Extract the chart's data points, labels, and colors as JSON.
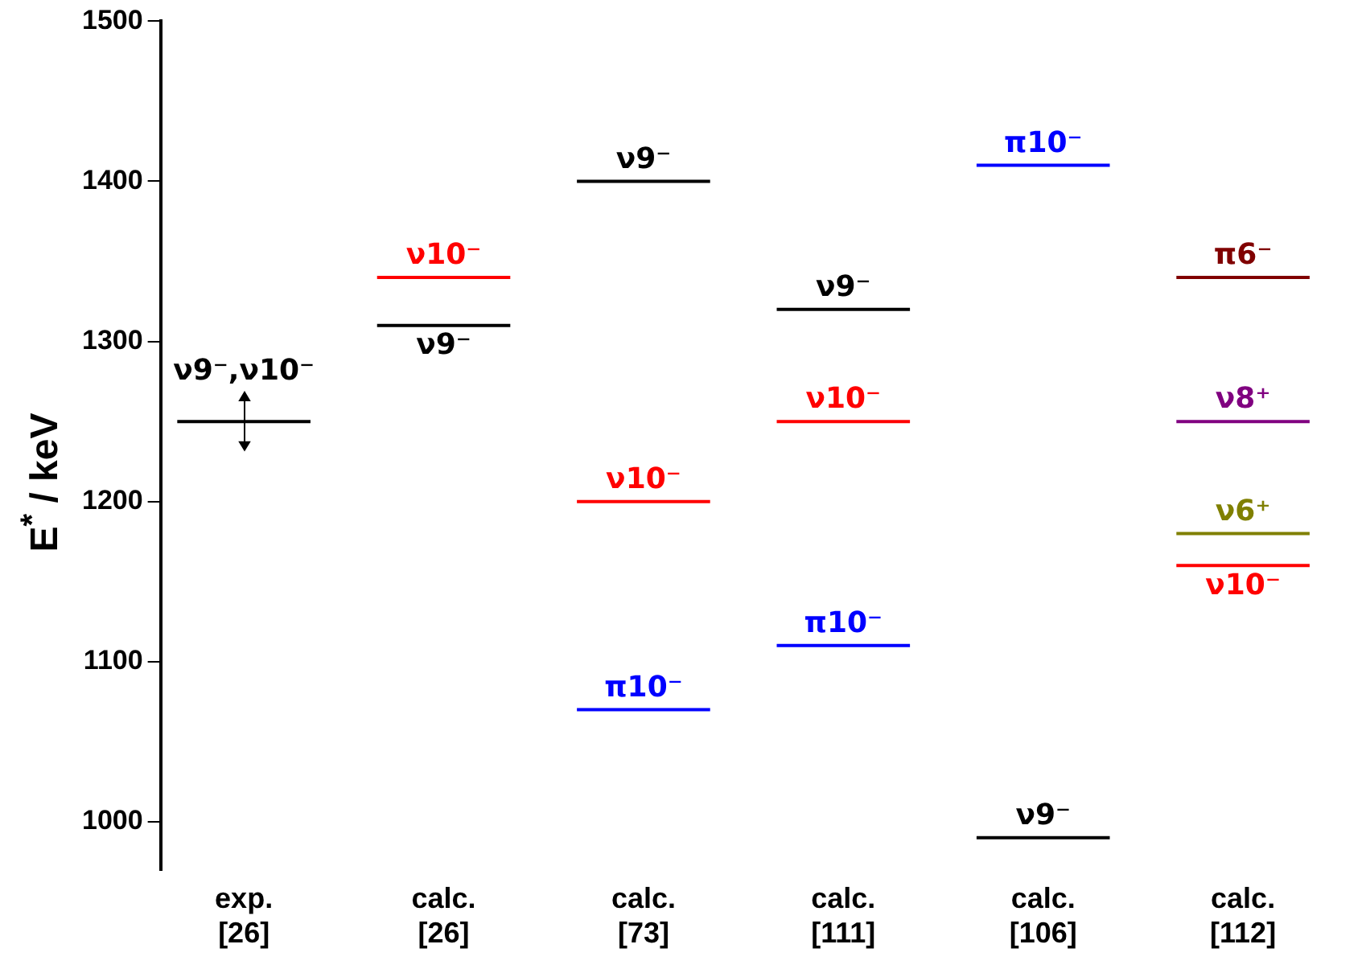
{
  "chart_data": {
    "type": "line",
    "ylabel": "E$^{*}$ / keV",
    "categories": [
      null,
      null,
      "exp. [26]",
      null,
      null,
      null,
      null,
      null,
      "calc. [26]",
      null,
      null,
      null,
      null,
      null,
      "calc. [73]",
      null,
      null,
      null,
      null,
      null,
      "calc. [111]",
      null,
      null,
      null,
      null,
      null,
      "calc. [106]",
      null,
      null,
      null,
      null,
      null,
      "calc. [112]",
      null,
      null,
      null
    ],
    "series": [
      {
        "color": "#000000",
        "values": [
          1250,
          1250,
          1250,
          1250,
          1250,
          null,
          null,
          null,
          null,
          null,
          null,
          null,
          null,
          null,
          null,
          null,
          null,
          null,
          null,
          null,
          null,
          null,
          null,
          null,
          null,
          null,
          null,
          null,
          null,
          null,
          null,
          null,
          null,
          null,
          null,
          null
        ],
        "errors": [
          null,
          null,
          18,
          null,
          null,
          null,
          null,
          null,
          null,
          null,
          null,
          null,
          null,
          null,
          null,
          null,
          null,
          null,
          null,
          null,
          null,
          null,
          null,
          null,
          null,
          null,
          null,
          null,
          null,
          null,
          null,
          null,
          null,
          null,
          null,
          null
        ]
      },
      {
        "color": "#ff0000",
        "values": [
          null,
          null,
          null,
          null,
          null,
          null,
          1340,
          1340,
          1340,
          1340,
          1340,
          null,
          null,
          null,
          null,
          null,
          null,
          null,
          null,
          null,
          null,
          null,
          null,
          null,
          null,
          null,
          null,
          null,
          null,
          null,
          null,
          null,
          null,
          null,
          null,
          null
        ]
      },
      {
        "color": "#000000",
        "values": [
          null,
          null,
          null,
          null,
          null,
          null,
          1310,
          1310,
          1310,
          1310,
          1310,
          null,
          null,
          null,
          null,
          null,
          null,
          null,
          null,
          null,
          null,
          null,
          null,
          null,
          null,
          null,
          null,
          null,
          null,
          null,
          null,
          null,
          null,
          null,
          null,
          null
        ]
      },
      {
        "color": "#000000",
        "values": [
          null,
          null,
          null,
          null,
          null,
          null,
          null,
          null,
          null,
          null,
          null,
          null,
          1400,
          1400,
          1400,
          1400,
          1400,
          null,
          null,
          null,
          null,
          null,
          null,
          null,
          null,
          null,
          null,
          null,
          null,
          null,
          null,
          null,
          null,
          null,
          null,
          null
        ]
      },
      {
        "color": "#ff0000",
        "values": [
          null,
          null,
          null,
          null,
          null,
          null,
          null,
          null,
          null,
          null,
          null,
          null,
          1200,
          1200,
          1200,
          1200,
          1200,
          null,
          null,
          null,
          null,
          null,
          null,
          null,
          null,
          null,
          null,
          null,
          null,
          null,
          null,
          null,
          null,
          null,
          null,
          null
        ]
      },
      {
        "color": "#0000ff",
        "values": [
          null,
          null,
          null,
          null,
          null,
          null,
          null,
          null,
          null,
          null,
          null,
          null,
          1070,
          1070,
          1070,
          1070,
          1070,
          null,
          null,
          null,
          null,
          null,
          null,
          null,
          null,
          null,
          null,
          null,
          null,
          null,
          null,
          null,
          null,
          null,
          null,
          null
        ]
      },
      {
        "color": "#000000",
        "values": [
          null,
          null,
          null,
          null,
          null,
          null,
          null,
          null,
          null,
          null,
          null,
          null,
          null,
          null,
          null,
          null,
          null,
          null,
          1320,
          1320,
          1320,
          1320,
          1320,
          null,
          null,
          null,
          null,
          null,
          null,
          null,
          null,
          null,
          null,
          null,
          null,
          null
        ]
      },
      {
        "color": "#ff0000",
        "values": [
          null,
          null,
          null,
          null,
          null,
          null,
          null,
          null,
          null,
          null,
          null,
          null,
          null,
          null,
          null,
          null,
          null,
          null,
          1250,
          1250,
          1250,
          1250,
          1250,
          null,
          null,
          null,
          null,
          null,
          null,
          null,
          null,
          null,
          null,
          null,
          null,
          null
        ]
      },
      {
        "color": "#0000ff",
        "values": [
          null,
          null,
          null,
          null,
          null,
          null,
          null,
          null,
          null,
          null,
          null,
          null,
          null,
          null,
          null,
          null,
          null,
          null,
          1110,
          1110,
          1110,
          1110,
          1110,
          null,
          null,
          null,
          null,
          null,
          null,
          null,
          null,
          null,
          null,
          null,
          null,
          null
        ]
      },
      {
        "color": "#0000ff",
        "values": [
          null,
          null,
          null,
          null,
          null,
          null,
          null,
          null,
          null,
          null,
          null,
          null,
          null,
          null,
          null,
          null,
          null,
          null,
          null,
          null,
          null,
          null,
          null,
          null,
          1410,
          1410,
          1410,
          1410,
          1410,
          null,
          null,
          null,
          null,
          null,
          null,
          null
        ]
      },
      {
        "color": "#000000",
        "values": [
          null,
          null,
          null,
          null,
          null,
          null,
          null,
          null,
          null,
          null,
          null,
          null,
          null,
          null,
          null,
          null,
          null,
          null,
          null,
          null,
          null,
          null,
          null,
          null,
          990,
          990,
          990,
          990,
          990,
          null,
          null,
          null,
          null,
          null,
          null,
          null
        ]
      },
      {
        "color": "#800000",
        "values": [
          null,
          null,
          null,
          null,
          null,
          null,
          null,
          null,
          null,
          null,
          null,
          null,
          null,
          null,
          null,
          null,
          null,
          null,
          null,
          null,
          null,
          null,
          null,
          null,
          null,
          null,
          null,
          null,
          null,
          null,
          1340,
          1340,
          1340,
          1340,
          1340,
          null
        ]
      },
      {
        "color": "#800080",
        "values": [
          null,
          null,
          null,
          null,
          null,
          null,
          null,
          null,
          null,
          null,
          null,
          null,
          null,
          null,
          null,
          null,
          null,
          null,
          null,
          null,
          null,
          null,
          null,
          null,
          null,
          null,
          null,
          null,
          null,
          null,
          1250,
          1250,
          1250,
          1250,
          1250,
          null
        ]
      },
      {
        "color": "#808000",
        "values": [
          null,
          null,
          null,
          null,
          null,
          null,
          null,
          null,
          null,
          null,
          null,
          null,
          null,
          null,
          null,
          null,
          null,
          null,
          null,
          null,
          null,
          null,
          null,
          null,
          null,
          null,
          null,
          null,
          null,
          null,
          1180,
          1180,
          1180,
          1180,
          1180,
          null
        ]
      },
      {
        "color": "#ff0000",
        "values": [
          null,
          null,
          null,
          null,
          null,
          null,
          null,
          null,
          null,
          null,
          null,
          null,
          null,
          null,
          null,
          null,
          null,
          null,
          null,
          null,
          null,
          null,
          null,
          null,
          null,
          null,
          null,
          null,
          null,
          null,
          1160,
          1160,
          1160,
          1160,
          1160,
          null
        ]
      }
    ],
    "annotations": [
      {
        "text": "ν9⁻,ν10⁻",
        "x": "exp. [26]",
        "y": 1250
      },
      {
        "text": "ν10⁻",
        "x": "calc. [26]",
        "y": 1340
      },
      {
        "text": "ν9⁻",
        "x": "calc. [26]",
        "y": 1310
      },
      {
        "text": "ν9⁻",
        "x": "calc. [73]",
        "y": 1400
      },
      {
        "text": "ν10⁻",
        "x": "calc. [73]",
        "y": 1200
      },
      {
        "text": "π10⁻",
        "x": "calc. [73]",
        "y": 1070
      },
      {
        "text": "ν9⁻",
        "x": "calc. [111]",
        "y": 1320
      },
      {
        "text": "ν10⁻",
        "x": "calc. [111]",
        "y": 1250
      },
      {
        "text": "π10⁻",
        "x": "calc. [111]",
        "y": 1110
      },
      {
        "text": "π10⁻",
        "x": "calc. [106]",
        "y": 1410
      },
      {
        "text": "ν9⁻",
        "x": "calc. [106]",
        "y": 990
      },
      {
        "text": "π6⁻",
        "x": "calc. [112]",
        "y": 1340
      },
      {
        "text": "ν8⁺",
        "x": "calc. [112]",
        "y": 1250
      },
      {
        "text": "ν6⁺",
        "x": "calc. [112]",
        "y": 1180
      },
      {
        "text": "ν10⁻",
        "x": "calc. [112]",
        "y": 1160
      }
    ],
    "ylim": [
      970,
      1500
    ],
    "yticks": [
      1000,
      1100,
      1200,
      1300,
      1400,
      1500
    ],
    "grid": false,
    "legend": false,
    "marker": "none"
  }
}
